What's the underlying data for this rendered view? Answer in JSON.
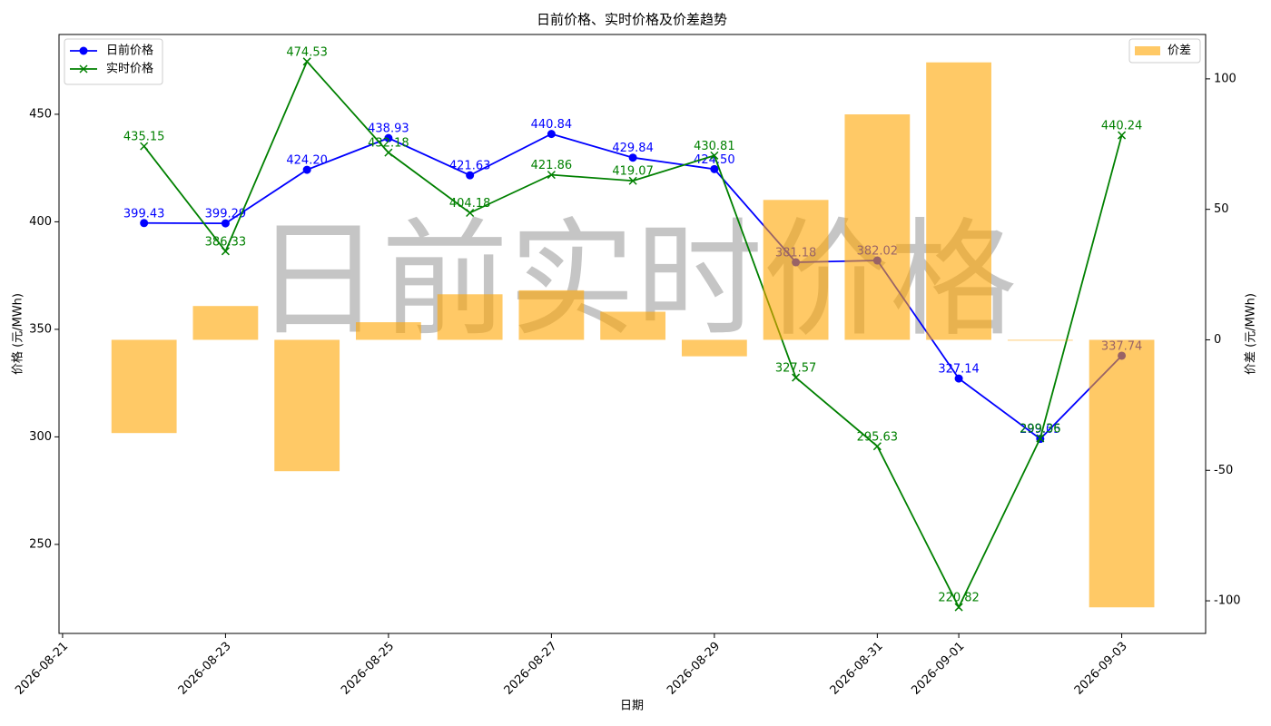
{
  "chart_data": {
    "type": "line",
    "title": "日前价格、实时价格及价差趋势",
    "watermark": "日前实时价格",
    "xlabel": "日期",
    "ylabel": "价格 (元/MWh)",
    "y2label": "价差 (元/MWh)",
    "x": [
      "2026-08-22",
      "2026-08-23",
      "2026-08-24",
      "2026-08-25",
      "2026-08-26",
      "2026-08-27",
      "2026-08-28",
      "2026-08-29",
      "2026-08-30",
      "2026-08-31",
      "2026-09-01",
      "2026-09-02",
      "2026-09-03"
    ],
    "xlim": [
      "2026-08-20T22:57",
      "2026-09-04T00:43"
    ],
    "xticks": [
      "2026-08-21",
      "2026-08-23",
      "2026-08-25",
      "2026-08-27",
      "2026-08-29",
      "2026-08-31",
      "2026-09-01",
      "2026-09-03"
    ],
    "ylim": [
      208.6,
      487.1
    ],
    "yticks": [
      250,
      300,
      350,
      400,
      450
    ],
    "y2lim": [
      -112.5,
      117
    ],
    "y2ticks": [
      -100,
      -50,
      0,
      50,
      100
    ],
    "series": [
      {
        "name": "日前价格",
        "type": "line",
        "marker": "o",
        "color": "#0000ff",
        "values": [
          399.43,
          399.29,
          424.2,
          438.93,
          421.63,
          440.84,
          429.84,
          424.5,
          381.18,
          382.02,
          327.14,
          299.05,
          337.74
        ],
        "value_labels": [
          "399.43",
          "399.29",
          "424.20",
          "438.93",
          "421.63",
          "440.84",
          "429.84",
          "424.50",
          "381.18",
          "382.02",
          "327.14",
          "299.05",
          "337.74"
        ]
      },
      {
        "name": "实时价格",
        "type": "line",
        "marker": "x",
        "color": "#008000",
        "values": [
          435.15,
          386.33,
          474.53,
          432.18,
          404.18,
          421.86,
          419.07,
          430.81,
          327.57,
          295.63,
          220.82,
          299.36,
          440.24
        ],
        "value_labels": [
          "435.15",
          "386.33",
          "474.53",
          "432.18",
          "404.18",
          "421.86",
          "419.07",
          "430.81",
          "327.57",
          "295.63",
          "220.82",
          "299.36",
          "440.24"
        ]
      },
      {
        "name": "价差",
        "type": "bar",
        "axis": "y2",
        "color": "#ffa500",
        "values": [
          -35.72,
          12.96,
          -50.33,
          6.75,
          17.45,
          18.98,
          10.77,
          -6.31,
          53.61,
          86.39,
          106.32,
          -0.31,
          -102.5
        ]
      }
    ]
  }
}
